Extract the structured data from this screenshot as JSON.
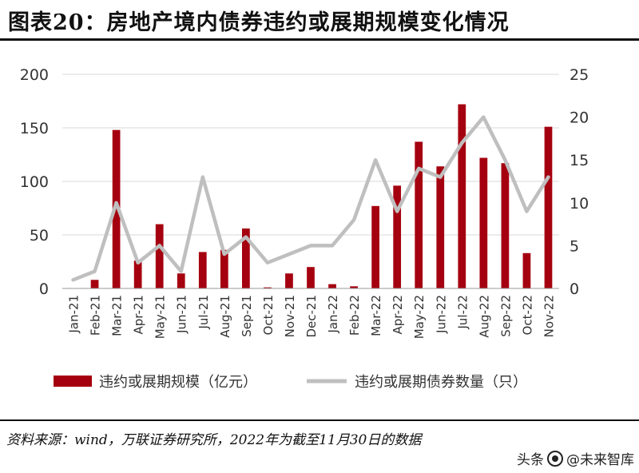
{
  "title": "图表20：房地产境内债券违约或展期规模变化情况",
  "source": "资料来源：wind，万联证券研究所，2022年为截至11月30日的数据",
  "watermark": {
    "platform": "头条",
    "handle": "@未来智库"
  },
  "colors": {
    "bar": "#A5000F",
    "line": "#BFBFBF",
    "axis_text": "#333333",
    "grid": "#D9D9D9"
  },
  "chart_data": {
    "type": "bar",
    "grid": true,
    "legend_position": "bottom",
    "categories": [
      "Jan-21",
      "Feb-21",
      "Mar-21",
      "Apr-21",
      "May-21",
      "Jun-21",
      "Jul-21",
      "Aug-21",
      "Sep-21",
      "Oct-21",
      "Nov-21",
      "Dec-21",
      "Jan-22",
      "Feb-22",
      "Mar-22",
      "Apr-22",
      "May-22",
      "Jun-22",
      "Jul-22",
      "Aug-22",
      "Sep-22",
      "Oct-22",
      "Nov-22"
    ],
    "ylim_left": [
      0,
      200
    ],
    "yticks_left": [
      "0",
      "50",
      "100",
      "150",
      "200"
    ],
    "ylim_right": [
      0,
      25
    ],
    "yticks_right": [
      "0",
      "5",
      "10",
      "15",
      "20",
      "25"
    ],
    "series": [
      {
        "name": "违约或展期规模（亿元）",
        "type": "bar",
        "axis": "left",
        "values": [
          0,
          8,
          148,
          26,
          60,
          14,
          34,
          36,
          56,
          1,
          14,
          20,
          4,
          2,
          77,
          96,
          137,
          114,
          172,
          122,
          117,
          33,
          151
        ]
      },
      {
        "name": "违约或展期债券数量（只）",
        "type": "line",
        "axis": "right",
        "values": [
          1,
          2,
          10,
          3,
          5,
          2,
          13,
          4,
          6,
          3,
          4,
          5,
          5,
          8,
          15,
          9,
          14,
          13,
          17,
          20,
          15,
          9,
          13
        ]
      }
    ]
  }
}
